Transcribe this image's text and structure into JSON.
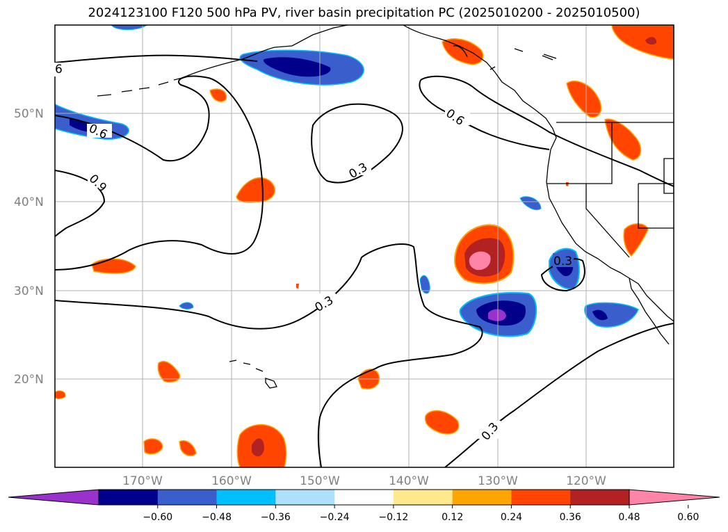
{
  "title": "2024123100 F120 500 hPa PV, river basin precipitation PC (2025010200 - 2025010500)",
  "lat_labels": [
    "50°N",
    "40°N",
    "30°N",
    "20°N"
  ],
  "lon_labels": [
    "170°W",
    "160°W",
    "150°W",
    "140°W",
    "130°W",
    "120°W"
  ],
  "contour_labels": [
    "6",
    "0.6",
    "0.9",
    "0.3",
    "0.6",
    "0.3",
    "0.3",
    "0.3"
  ],
  "colorbar": {
    "ticks": [
      "−0.60",
      "−0.48",
      "−0.36",
      "−0.24",
      "−0.12",
      "0.12",
      "0.24",
      "0.36",
      "0.48",
      "0.60"
    ],
    "colors": [
      "#9932CC",
      "#00008B",
      "#3A5FCD",
      "#00BFFF",
      "#ADE0FA",
      "#FFFFFF",
      "#FFE98C",
      "#FFA500",
      "#FF4500",
      "#B22222",
      "#FF85A8"
    ]
  },
  "colors": {
    "grid": "#b0b0b0",
    "contour": "#000000",
    "coast": "#000000"
  }
}
